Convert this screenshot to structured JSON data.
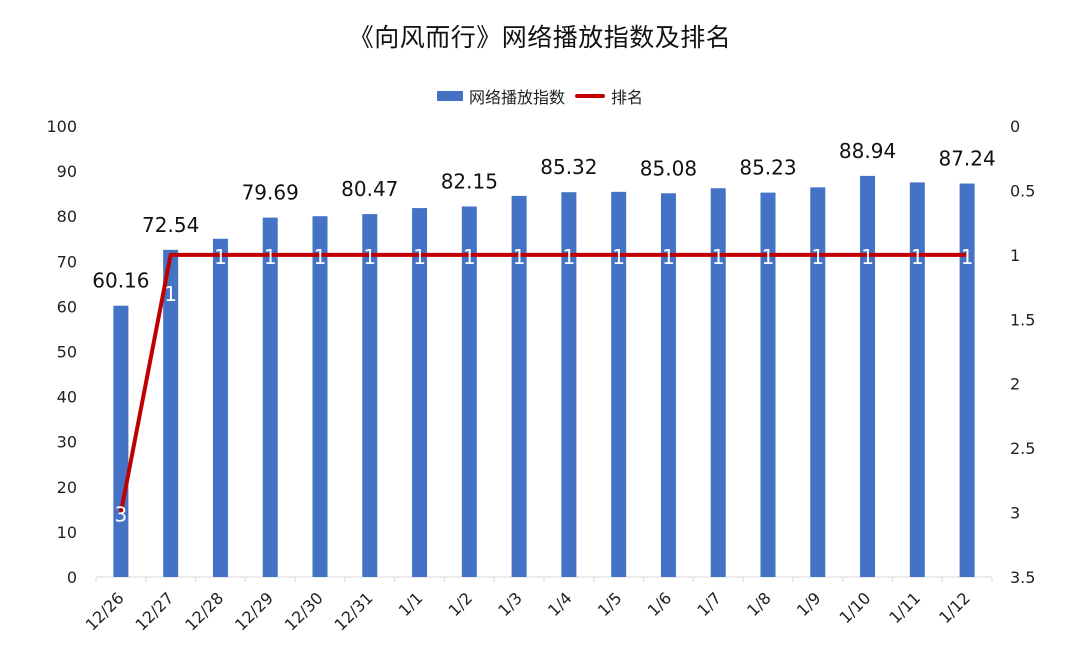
{
  "chart_data": {
    "type": "bar",
    "title": "《向风而行》网络播放指数及排名",
    "categories": [
      "12/26",
      "12/27",
      "12/28",
      "12/29",
      "12/30",
      "12/31",
      "1/1",
      "1/2",
      "1/3",
      "1/4",
      "1/5",
      "1/6",
      "1/7",
      "1/8",
      "1/9",
      "1/10",
      "1/11",
      "1/12"
    ],
    "series": [
      {
        "name": "网络播放指数",
        "kind": "bar",
        "axis": "left",
        "color": "#4472C4",
        "values": [
          60.16,
          72.54,
          75.0,
          79.69,
          80.0,
          80.47,
          81.8,
          82.15,
          84.5,
          85.32,
          85.4,
          85.08,
          86.2,
          85.23,
          86.4,
          88.94,
          87.5,
          87.24
        ],
        "labels": [
          "60.16",
          "72.54",
          "",
          "79.69",
          "",
          "80.47",
          "",
          "82.15",
          "",
          "85.32",
          "",
          "85.08",
          "",
          "85.23",
          "",
          "88.94",
          "",
          "87.24"
        ]
      },
      {
        "name": "排名",
        "kind": "line",
        "axis": "right",
        "color": "#C00000",
        "values": [
          3,
          1,
          1,
          1,
          1,
          1,
          1,
          1,
          1,
          1,
          1,
          1,
          1,
          1,
          1,
          1,
          1,
          1
        ],
        "labels": [
          "3",
          "1",
          "1",
          "1",
          "1",
          "1",
          "1",
          "1",
          "1",
          "1",
          "1",
          "1",
          "1",
          "1",
          "1",
          "1",
          "1",
          "1"
        ]
      }
    ],
    "y_left": {
      "ylim": [
        0,
        100
      ],
      "ticks": [
        "0",
        "10",
        "20",
        "30",
        "40",
        "50",
        "60",
        "70",
        "80",
        "90",
        "100"
      ]
    },
    "y_right": {
      "ylim": [
        0,
        3.5
      ],
      "reversed": true,
      "ticks": [
        "0",
        "0.5",
        "1",
        "1.5",
        "2",
        "2.5",
        "3",
        "3.5"
      ]
    },
    "grid": false,
    "legend_position": "top-center"
  }
}
